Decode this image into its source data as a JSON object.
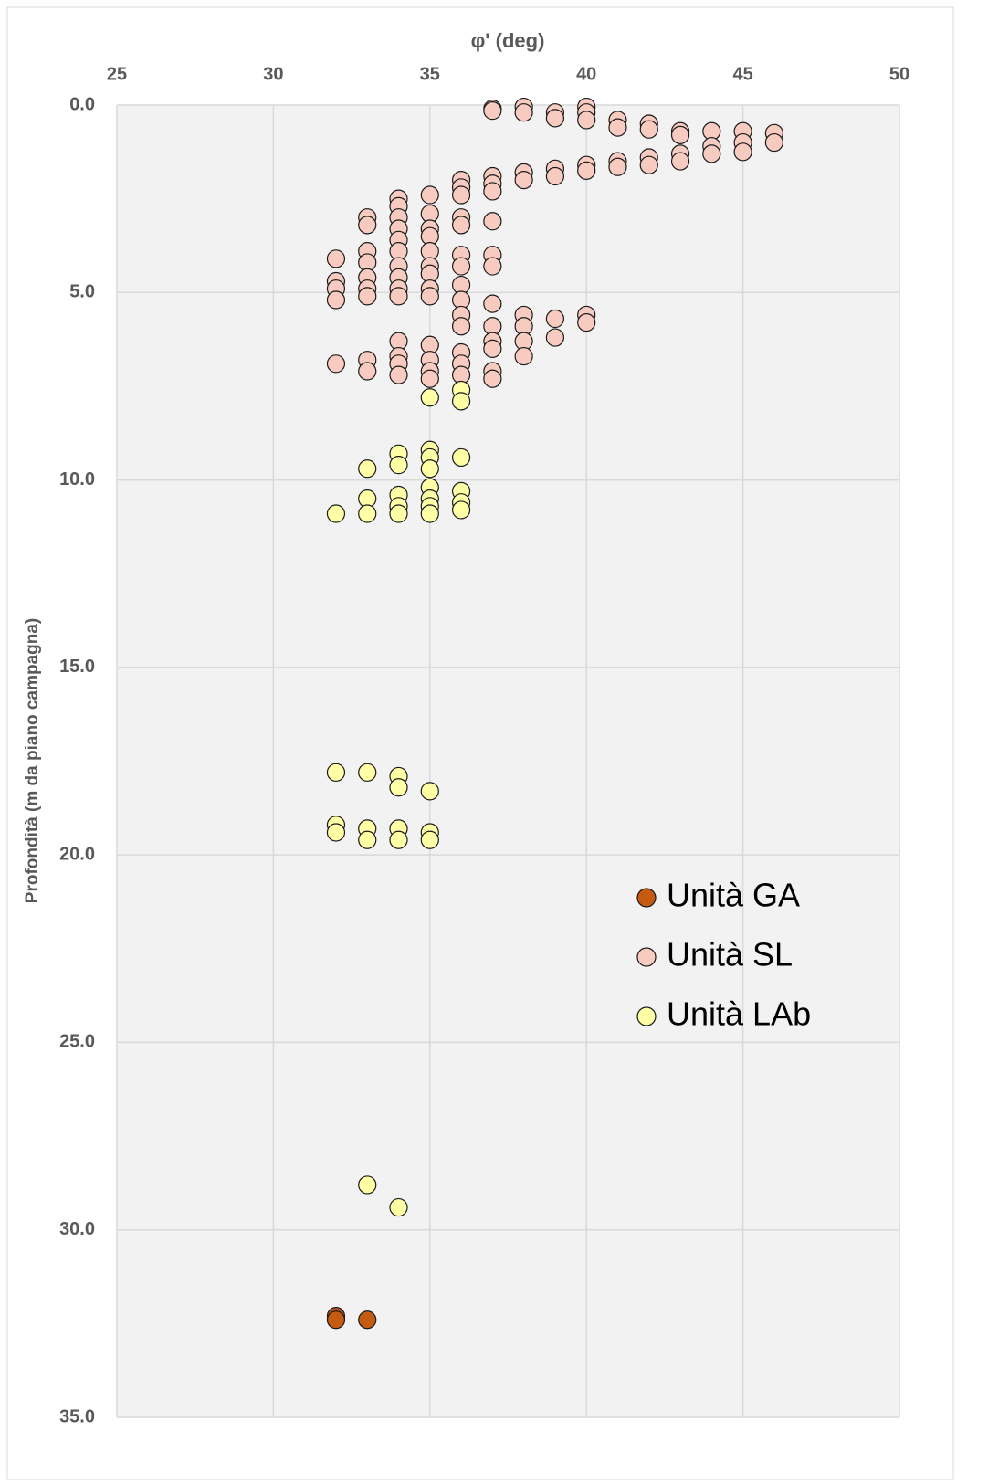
{
  "chart_data": {
    "type": "scatter",
    "x_label": "φ' (deg)",
    "y_label": "Profondità (m da piano campagna)",
    "xlim": [
      25,
      50
    ],
    "xticks": [
      25,
      30,
      35,
      40,
      45,
      50
    ],
    "ylim": [
      0,
      35
    ],
    "y_reversed": true,
    "yticks": [
      {
        "value": 0,
        "label": "0.0"
      },
      {
        "value": 5,
        "label": "5.0"
      },
      {
        "value": 10,
        "label": "10.0"
      },
      {
        "value": 15,
        "label": "15.0"
      },
      {
        "value": 20,
        "label": "20.0"
      },
      {
        "value": 25,
        "label": "25.0"
      },
      {
        "value": 30,
        "label": "30.0"
      },
      {
        "value": 35,
        "label": "35.0"
      }
    ],
    "grid": true,
    "series": [
      {
        "name": "Unità GA",
        "color": "#c55a11",
        "x": [
          32,
          32,
          33
        ],
        "values": [
          32.3,
          32.4,
          32.4
        ]
      },
      {
        "name": "Unità SL",
        "color": "#f8cbc0",
        "x": [
          37,
          37,
          38,
          38,
          39,
          39,
          40,
          40,
          40,
          41,
          41,
          42,
          42,
          43,
          43,
          44,
          44,
          44,
          45,
          45,
          45,
          46,
          46,
          41,
          41,
          42,
          42,
          43,
          43,
          40,
          40,
          39,
          39,
          38,
          38,
          37,
          37,
          37,
          36,
          36,
          36,
          35,
          35,
          35,
          35,
          35,
          35,
          35,
          35,
          35,
          34,
          34,
          34,
          34,
          34,
          34,
          34,
          34,
          34,
          34,
          33,
          33,
          33,
          33,
          33,
          33,
          33,
          32,
          32,
          32,
          32,
          36,
          36,
          36,
          36,
          36,
          36,
          36,
          36,
          37,
          37,
          37,
          37,
          37,
          37,
          37,
          37,
          37,
          38,
          38,
          38,
          38,
          39,
          39,
          40,
          40,
          32,
          33,
          33,
          34,
          34,
          34,
          34,
          35,
          35,
          35,
          35,
          36,
          36,
          36
        ],
        "values": [
          0.1,
          0.15,
          0.05,
          0.2,
          0.2,
          0.35,
          0.05,
          0.2,
          0.4,
          0.4,
          0.6,
          0.5,
          0.65,
          0.7,
          0.8,
          0.7,
          1.1,
          1.3,
          0.7,
          1.0,
          1.25,
          0.75,
          1.0,
          1.5,
          1.65,
          1.4,
          1.6,
          1.3,
          1.5,
          1.6,
          1.75,
          1.7,
          1.9,
          1.8,
          2.0,
          1.9,
          2.1,
          2.3,
          2.0,
          2.2,
          2.4,
          2.4,
          2.9,
          3.3,
          3.5,
          3.9,
          4.3,
          4.5,
          4.9,
          5.1,
          2.5,
          2.7,
          3.0,
          3.3,
          3.6,
          3.9,
          4.3,
          4.6,
          4.9,
          5.1,
          3.0,
          3.2,
          3.9,
          4.2,
          4.6,
          4.9,
          5.1,
          4.1,
          4.7,
          4.9,
          5.2,
          3.0,
          3.2,
          4.0,
          4.3,
          4.8,
          5.2,
          5.6,
          5.9,
          3.1,
          4.0,
          4.3,
          5.3,
          5.9,
          6.3,
          6.5,
          7.1,
          7.3,
          5.6,
          5.9,
          6.3,
          6.7,
          5.7,
          6.2,
          5.6,
          5.8,
          6.9,
          6.8,
          7.1,
          6.3,
          6.7,
          6.9,
          7.2,
          6.4,
          6.8,
          7.1,
          7.3,
          6.6,
          6.9,
          7.2
        ]
      },
      {
        "name": "Unità LAb",
        "color": "#ffffa6",
        "x": [
          35,
          36,
          36,
          36,
          35,
          35,
          35,
          35,
          35,
          35,
          35,
          34,
          34,
          34,
          34,
          34,
          33,
          33,
          33,
          32,
          36,
          36,
          36,
          32,
          32,
          32,
          33,
          33,
          33,
          34,
          34,
          34,
          34,
          35,
          35,
          35,
          33,
          34
        ],
        "values": [
          7.8,
          7.6,
          7.9,
          9.4,
          9.2,
          9.4,
          9.7,
          10.2,
          10.5,
          10.7,
          10.9,
          9.3,
          9.6,
          10.4,
          10.7,
          10.9,
          9.7,
          10.5,
          10.9,
          10.9,
          10.3,
          10.6,
          10.8,
          17.8,
          19.2,
          19.4,
          17.8,
          19.3,
          19.6,
          17.9,
          18.2,
          19.3,
          19.6,
          18.3,
          19.4,
          19.6,
          28.8,
          29.4
        ]
      }
    ]
  }
}
